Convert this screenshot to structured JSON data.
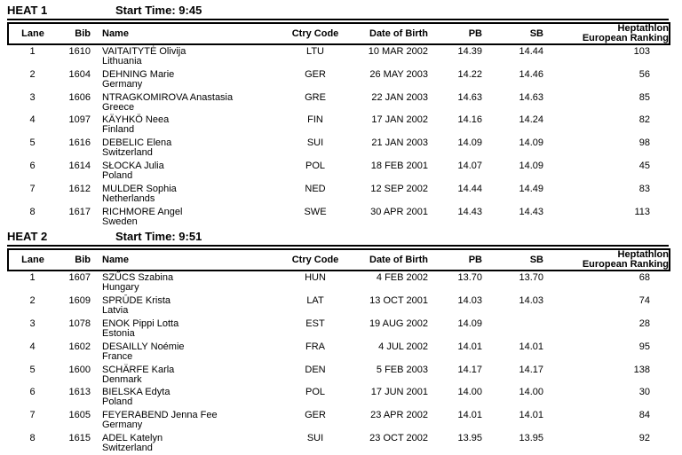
{
  "columns": {
    "lane": "Lane",
    "bib": "Bib",
    "name": "Name",
    "ctry": "Ctry Code",
    "dob": "Date of Birth",
    "pb": "PB",
    "sb": "SB",
    "ranking_line1": "Heptathlon",
    "ranking_line2": "European Ranking"
  },
  "colors": {
    "text": "#000000",
    "background": "#ffffff",
    "rule": "#000000"
  },
  "heats": [
    {
      "title": "HEAT 1",
      "start_time_label": "Start Time: 9:45",
      "rows": [
        {
          "lane": "1",
          "bib": "1610",
          "name": "VAITAITYTĖ Olivija",
          "country": "Lithuania",
          "ctry": "LTU",
          "dob": "10 MAR 2002",
          "pb": "14.39",
          "sb": "14.44",
          "rank": "103"
        },
        {
          "lane": "2",
          "bib": "1604",
          "name": "DEHNING Marie",
          "country": "Germany",
          "ctry": "GER",
          "dob": "26 MAY 2003",
          "pb": "14.22",
          "sb": "14.46",
          "rank": "56"
        },
        {
          "lane": "3",
          "bib": "1606",
          "name": "NTRAGKOMIROVA Anastasia",
          "country": "Greece",
          "ctry": "GRE",
          "dob": "22 JAN 2003",
          "pb": "14.63",
          "sb": "14.63",
          "rank": "85"
        },
        {
          "lane": "4",
          "bib": "1097",
          "name": "KÄYHKÖ Neea",
          "country": "Finland",
          "ctry": "FIN",
          "dob": "17 JAN 2002",
          "pb": "14.16",
          "sb": "14.24",
          "rank": "82"
        },
        {
          "lane": "5",
          "bib": "1616",
          "name": "DEBELIC Elena",
          "country": "Switzerland",
          "ctry": "SUI",
          "dob": "21 JAN 2003",
          "pb": "14.09",
          "sb": "14.09",
          "rank": "98"
        },
        {
          "lane": "6",
          "bib": "1614",
          "name": "SŁOCKA Julia",
          "country": "Poland",
          "ctry": "POL",
          "dob": "18 FEB 2001",
          "pb": "14.07",
          "sb": "14.09",
          "rank": "45"
        },
        {
          "lane": "7",
          "bib": "1612",
          "name": "MULDER Sophia",
          "country": "Netherlands",
          "ctry": "NED",
          "dob": "12 SEP 2002",
          "pb": "14.44",
          "sb": "14.49",
          "rank": "83"
        },
        {
          "lane": "8",
          "bib": "1617",
          "name": "RICHMORE Angel",
          "country": "Sweden",
          "ctry": "SWE",
          "dob": "30 APR 2001",
          "pb": "14.43",
          "sb": "14.43",
          "rank": "113"
        }
      ]
    },
    {
      "title": "HEAT 2",
      "start_time_label": "Start Time: 9:51",
      "rows": [
        {
          "lane": "1",
          "bib": "1607",
          "name": "SZŰCS Szabina",
          "country": "Hungary",
          "ctry": "HUN",
          "dob": "4 FEB 2002",
          "pb": "13.70",
          "sb": "13.70",
          "rank": "68"
        },
        {
          "lane": "2",
          "bib": "1609",
          "name": "SPRŪDE Krista",
          "country": "Latvia",
          "ctry": "LAT",
          "dob": "13 OCT 2001",
          "pb": "14.03",
          "sb": "14.03",
          "rank": "74"
        },
        {
          "lane": "3",
          "bib": "1078",
          "name": "ENOK Pippi Lotta",
          "country": "Estonia",
          "ctry": "EST",
          "dob": "19 AUG 2002",
          "pb": "14.09",
          "sb": "",
          "rank": "28"
        },
        {
          "lane": "4",
          "bib": "1602",
          "name": "DESAILLY Noémie",
          "country": "France",
          "ctry": "FRA",
          "dob": "4 JUL 2002",
          "pb": "14.01",
          "sb": "14.01",
          "rank": "95"
        },
        {
          "lane": "5",
          "bib": "1600",
          "name": "SCHÄRFE Karla",
          "country": "Denmark",
          "ctry": "DEN",
          "dob": "5 FEB 2003",
          "pb": "14.17",
          "sb": "14.17",
          "rank": "138"
        },
        {
          "lane": "6",
          "bib": "1613",
          "name": "BIELSKA Edyta",
          "country": "Poland",
          "ctry": "POL",
          "dob": "17 JUN 2001",
          "pb": "14.00",
          "sb": "14.00",
          "rank": "30"
        },
        {
          "lane": "7",
          "bib": "1605",
          "name": "FEYERABEND Jenna Fee",
          "country": "Germany",
          "ctry": "GER",
          "dob": "23 APR 2002",
          "pb": "14.01",
          "sb": "14.01",
          "rank": "84"
        },
        {
          "lane": "8",
          "bib": "1615",
          "name": "ADEL Katelyn",
          "country": "Switzerland",
          "ctry": "SUI",
          "dob": "23 OCT 2002",
          "pb": "13.95",
          "sb": "13.95",
          "rank": "92"
        }
      ]
    }
  ]
}
